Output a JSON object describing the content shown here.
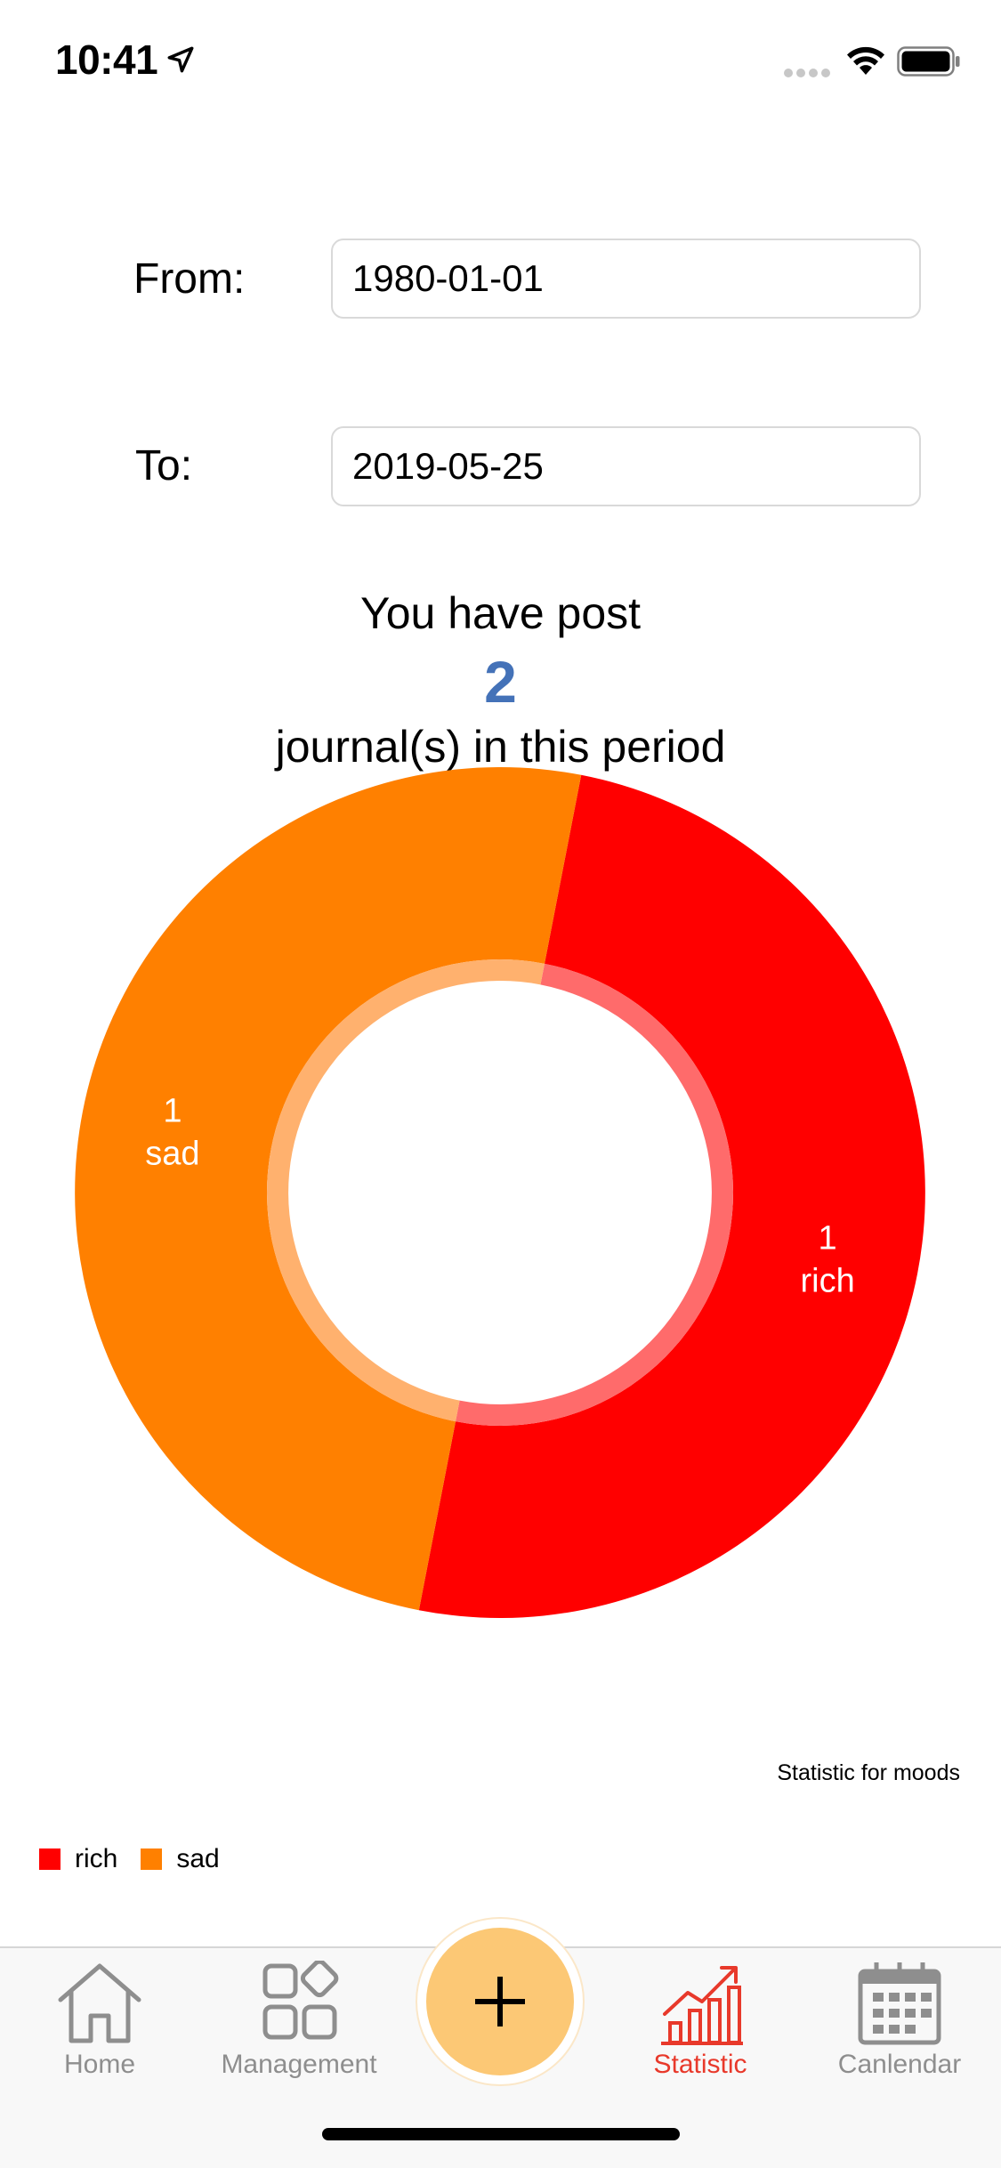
{
  "status_bar": {
    "time": "10:41",
    "location_icon": "location-arrow-icon",
    "signal_icon": "signal-dots-icon",
    "wifi_icon": "wifi-icon",
    "battery_icon": "battery-icon"
  },
  "form": {
    "from_label": "From:",
    "from_value": "1980-01-01",
    "to_label": "To:",
    "to_value": "2019-05-25"
  },
  "summary": {
    "line1": "You have post",
    "count": "2",
    "line2": "journal(s) in this period"
  },
  "chart_data": {
    "type": "pie",
    "variant": "donut",
    "categories": [
      "rich",
      "sad"
    ],
    "values": [
      1,
      1
    ],
    "colors": [
      "#ff0000",
      "#ff8000"
    ],
    "inner_ring_colors": [
      "#ff6b6b",
      "#ffb16e"
    ],
    "slice_labels": [
      {
        "count": "1",
        "name": "rich"
      },
      {
        "count": "1",
        "name": "sad"
      }
    ],
    "title": "Statistic for moods",
    "legend": [
      "rich",
      "sad"
    ],
    "legend_position": "bottom-left"
  },
  "tab_bar": {
    "items": [
      {
        "label": "Home",
        "icon": "home-icon",
        "active": false
      },
      {
        "label": "Management",
        "icon": "grid-shapes-icon",
        "active": false
      },
      {
        "label": "Statistic",
        "icon": "bar-chart-trend-icon",
        "active": true
      },
      {
        "label": "Canlendar",
        "icon": "calendar-icon",
        "active": false
      }
    ],
    "add_icon": "plus-icon",
    "active_color": "#e8392b",
    "inactive_color": "#8e8e8e",
    "add_color": "#fcc875"
  }
}
